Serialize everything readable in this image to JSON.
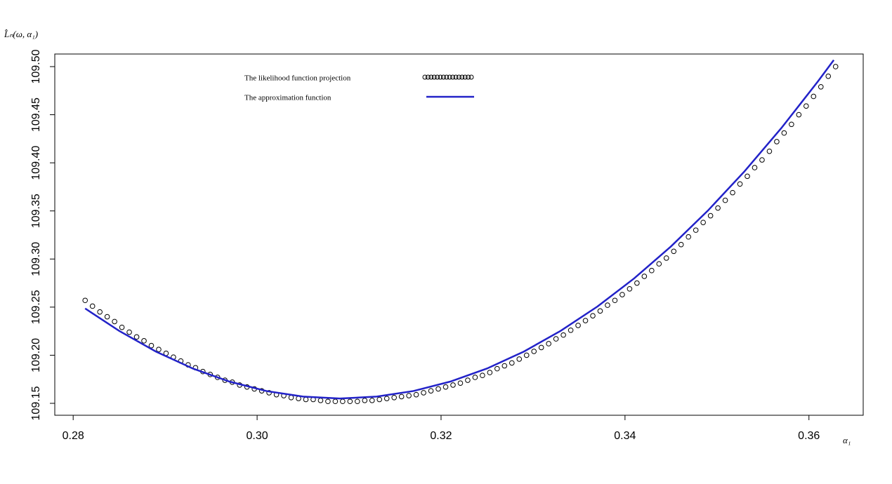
{
  "chart_data": {
    "type": "line",
    "y_label": "L̂ₙ(ω, α₁)",
    "x_label": "α₁",
    "xlim": [
      0.278,
      0.3659
    ],
    "ylim": [
      109.1376,
      109.5131
    ],
    "xticks": [
      0.28,
      {
        "value": 0.3,
        "label": "0.30"
      },
      0.32,
      0.34,
      0.36
    ],
    "yticks": [
      109.15,
      {
        "value": 109.2,
        "label": "109.20"
      },
      109.25,
      {
        "value": 109.3,
        "label": "109.30"
      },
      109.35,
      {
        "value": 109.4,
        "label": "109.40"
      },
      109.45,
      {
        "value": 109.5,
        "label": "109.50"
      }
    ],
    "series": [
      {
        "name": "The likelihood function  projection",
        "style": "points",
        "color": "#000000",
        "x": [
          0.2813,
          0.2821,
          0.2829,
          0.2837,
          0.2845,
          0.2853,
          0.2861,
          0.2869,
          0.2877,
          0.2885,
          0.2893,
          0.2901,
          0.2909,
          0.2917,
          0.2925,
          0.2933,
          0.2941,
          0.2949,
          0.2957,
          0.2965,
          0.2973,
          0.2981,
          0.2989,
          0.2997,
          0.3005,
          0.3013,
          0.3021,
          0.3029,
          0.3037,
          0.3045,
          0.3053,
          0.3061,
          0.3069,
          0.3077,
          0.3085,
          0.3093,
          0.3101,
          0.3109,
          0.3117,
          0.3125,
          0.3133,
          0.3141,
          0.3149,
          0.3157,
          0.3165,
          0.3173,
          0.3181,
          0.3189,
          0.3197,
          0.3205,
          0.3213,
          0.3221,
          0.3229,
          0.3237,
          0.3245,
          0.3253,
          0.3261,
          0.3269,
          0.3277,
          0.3285,
          0.3293,
          0.3301,
          0.3309,
          0.3317,
          0.3325,
          0.3333,
          0.3341,
          0.3349,
          0.3357,
          0.3365,
          0.3373,
          0.3381,
          0.3389,
          0.3397,
          0.3405,
          0.3413,
          0.3421,
          0.3429,
          0.3437,
          0.3445,
          0.3453,
          0.3461,
          0.3469,
          0.3477,
          0.3485,
          0.3493,
          0.3501,
          0.3509,
          0.3517,
          0.3525,
          0.3533,
          0.3541,
          0.3549,
          0.3557,
          0.3565,
          0.3573,
          0.3581,
          0.3589,
          0.3597,
          0.3605,
          0.3613,
          0.3621,
          0.3629
        ],
        "values": [
          109.257,
          109.251,
          109.245,
          109.24,
          109.235,
          109.229,
          109.224,
          109.219,
          109.215,
          109.21,
          109.206,
          109.202,
          109.198,
          109.194,
          109.19,
          109.187,
          109.183,
          109.18,
          109.177,
          109.174,
          109.172,
          109.169,
          109.167,
          109.165,
          109.163,
          109.161,
          109.159,
          109.158,
          109.156,
          109.155,
          109.154,
          109.154,
          109.153,
          109.152,
          109.152,
          109.152,
          109.152,
          109.152,
          109.153,
          109.153,
          109.154,
          109.155,
          109.156,
          109.157,
          109.158,
          109.159,
          109.161,
          109.163,
          109.165,
          109.167,
          109.169,
          109.171,
          109.174,
          109.177,
          109.179,
          109.182,
          109.186,
          109.189,
          109.192,
          109.196,
          109.2,
          109.204,
          109.208,
          109.212,
          109.217,
          109.221,
          109.226,
          109.231,
          109.236,
          109.241,
          109.246,
          109.252,
          109.257,
          109.263,
          109.269,
          109.275,
          109.282,
          109.288,
          109.295,
          109.301,
          109.308,
          109.315,
          109.323,
          109.33,
          109.338,
          109.345,
          109.353,
          109.361,
          109.369,
          109.378,
          109.386,
          109.395,
          109.403,
          109.412,
          109.422,
          109.431,
          109.44,
          109.45,
          109.459,
          109.469,
          109.479,
          109.49,
          109.5
        ]
      },
      {
        "name": "The approximation function",
        "style": "line",
        "color": "#2222c8",
        "x": [
          0.2813,
          0.285,
          0.289,
          0.293,
          0.297,
          0.301,
          0.305,
          0.309,
          0.313,
          0.317,
          0.321,
          0.325,
          0.329,
          0.333,
          0.337,
          0.341,
          0.345,
          0.349,
          0.353,
          0.357,
          0.361,
          0.3627
        ],
        "values": [
          109.2486,
          109.2253,
          109.2038,
          109.1862,
          109.1726,
          109.1628,
          109.157,
          109.155,
          109.157,
          109.1628,
          109.1726,
          109.1862,
          109.2038,
          109.2253,
          109.2506,
          109.2799,
          109.3131,
          109.3502,
          109.3912,
          109.4361,
          109.4849,
          109.5068
        ]
      }
    ]
  }
}
